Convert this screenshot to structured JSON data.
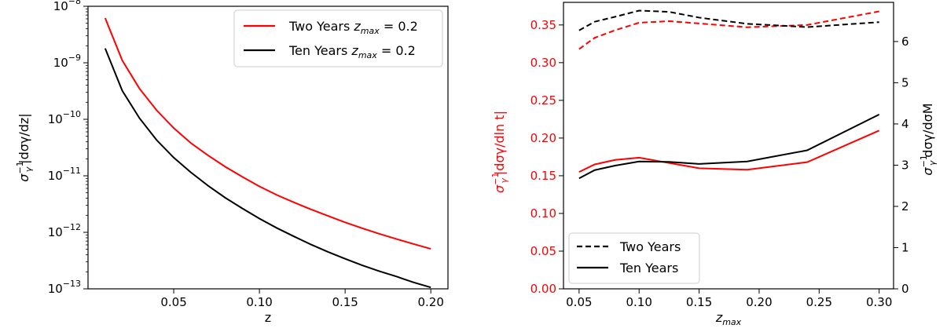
{
  "chart_data": [
    {
      "type": "line",
      "xlabel": "z",
      "ylabel": {
        "base": "σ",
        "sup": "−1",
        "sub": "γ",
        "rest": "|dσγ/dz|"
      },
      "yscale": "log",
      "xlim": [
        0.0,
        0.21
      ],
      "ylim": [
        1e-13,
        1e-08
      ],
      "xticks": [
        0.05,
        0.1,
        0.15,
        0.2
      ],
      "xtick_labels": [
        "0.05",
        "0.10",
        "0.15",
        "0.20"
      ],
      "yticks": [
        1e-13,
        1e-12,
        1e-11,
        1e-10,
        1e-09,
        1e-08
      ],
      "ytick_labels": [
        {
          "base": "10",
          "exp": "−13"
        },
        {
          "base": "10",
          "exp": "−12"
        },
        {
          "base": "10",
          "exp": "−11"
        },
        {
          "base": "10",
          "exp": "−10"
        },
        {
          "base": "10",
          "exp": "−9"
        },
        {
          "base": "10",
          "exp": "−8"
        }
      ],
      "legend_position": "top-right",
      "series": [
        {
          "name": "Two Years z_max = 0.2",
          "legend": {
            "text": "Two Years ",
            "var": "z",
            "sub": "max",
            "eq": " = 0.2"
          },
          "color": "#ff0000",
          "style": "solid",
          "x": [
            0.01,
            0.02,
            0.03,
            0.04,
            0.05,
            0.06,
            0.07,
            0.08,
            0.09,
            0.1,
            0.11,
            0.12,
            0.13,
            0.14,
            0.15,
            0.16,
            0.17,
            0.18,
            0.19,
            0.2
          ],
          "y": [
            6.2e-09,
            1.1e-09,
            3.5e-10,
            1.45e-10,
            7e-11,
            3.8e-11,
            2.3e-11,
            1.45e-11,
            9.6e-12,
            6.5e-12,
            4.6e-12,
            3.4e-12,
            2.55e-12,
            1.95e-12,
            1.5e-12,
            1.18e-12,
            9.4e-13,
            7.6e-13,
            6.2e-13,
            5.1e-13
          ]
        },
        {
          "name": "Ten Years z_max = 0.2",
          "legend": {
            "text": "Ten Years ",
            "var": "z",
            "sub": "max",
            "eq": " = 0.2"
          },
          "color": "#000000",
          "style": "solid",
          "x": [
            0.01,
            0.02,
            0.03,
            0.04,
            0.05,
            0.06,
            0.07,
            0.08,
            0.09,
            0.1,
            0.11,
            0.12,
            0.13,
            0.14,
            0.15,
            0.16,
            0.17,
            0.18,
            0.19,
            0.2
          ],
          "y": [
            1.8e-09,
            3.2e-10,
            1.05e-10,
            4.3e-11,
            2.1e-11,
            1.15e-11,
            6.7e-12,
            4.1e-12,
            2.65e-12,
            1.75e-12,
            1.2e-12,
            8.5e-13,
            6.1e-13,
            4.5e-13,
            3.4e-13,
            2.6e-13,
            2.05e-13,
            1.65e-13,
            1.3e-13,
            1.06e-13
          ]
        }
      ]
    },
    {
      "type": "line",
      "xlabel": {
        "var": "z",
        "sub": "max"
      },
      "ylabel": {
        "base": "σ",
        "sup": "−1",
        "sub": "γ",
        "rest": "|dσγ/dln t|"
      },
      "ylabel_color": "#ff0000",
      "ylabel_right": {
        "base": "σ",
        "sup": "−1",
        "sub": "γ",
        "rest": "dσγ/dσM"
      },
      "ylabel_right_color": "#000000",
      "xlim": [
        0.037,
        0.312
      ],
      "ylim": [
        0.0,
        0.38
      ],
      "ylim_right": [
        0.0,
        6.95
      ],
      "xticks": [
        0.05,
        0.1,
        0.15,
        0.2,
        0.25,
        0.3
      ],
      "xtick_labels": [
        "0.05",
        "0.10",
        "0.15",
        "0.20",
        "0.25",
        "0.30"
      ],
      "yticks": [
        0.0,
        0.05,
        0.1,
        0.15,
        0.2,
        0.25,
        0.3,
        0.35
      ],
      "ytick_labels": [
        "0.00",
        "0.05",
        "0.10",
        "0.15",
        "0.20",
        "0.25",
        "0.30",
        "0.35"
      ],
      "ytick_color": "#ff0000",
      "yticks_right": [
        0,
        1,
        2,
        3,
        4,
        5,
        6
      ],
      "ytick_labels_right": [
        "0",
        "1",
        "2",
        "3",
        "4",
        "5",
        "6"
      ],
      "legend_position": "bottom-left",
      "legend": [
        {
          "label": "Two Years",
          "style": "dashed",
          "color": "#000000"
        },
        {
          "label": "Ten Years",
          "style": "solid",
          "color": "#000000"
        }
      ],
      "series": [
        {
          "name": "Two Years",
          "axis": "left",
          "color": "#ff0000",
          "style": "dashed",
          "x": [
            0.05,
            0.063,
            0.08,
            0.1,
            0.125,
            0.15,
            0.19,
            0.24,
            0.3
          ],
          "y": [
            0.318,
            0.333,
            0.343,
            0.353,
            0.355,
            0.352,
            0.347,
            0.35,
            0.368
          ]
        },
        {
          "name": "Ten Years",
          "axis": "left",
          "color": "#ff0000",
          "style": "solid",
          "x": [
            0.05,
            0.063,
            0.08,
            0.1,
            0.125,
            0.15,
            0.19,
            0.24,
            0.3
          ],
          "y": [
            0.155,
            0.165,
            0.171,
            0.174,
            0.167,
            0.16,
            0.158,
            0.168,
            0.21
          ]
        },
        {
          "name": "Two Years",
          "axis": "right",
          "color": "#000000",
          "style": "dashed",
          "x": [
            0.05,
            0.063,
            0.08,
            0.1,
            0.125,
            0.15,
            0.19,
            0.24,
            0.3
          ],
          "y": [
            6.27,
            6.48,
            6.6,
            6.75,
            6.72,
            6.58,
            6.43,
            6.35,
            6.47
          ]
        },
        {
          "name": "Ten Years",
          "axis": "right",
          "color": "#000000",
          "style": "solid",
          "x": [
            0.05,
            0.063,
            0.08,
            0.1,
            0.125,
            0.15,
            0.19,
            0.24,
            0.3
          ],
          "y": [
            2.68,
            2.88,
            2.99,
            3.09,
            3.08,
            3.03,
            3.09,
            3.36,
            4.23
          ]
        }
      ]
    }
  ]
}
